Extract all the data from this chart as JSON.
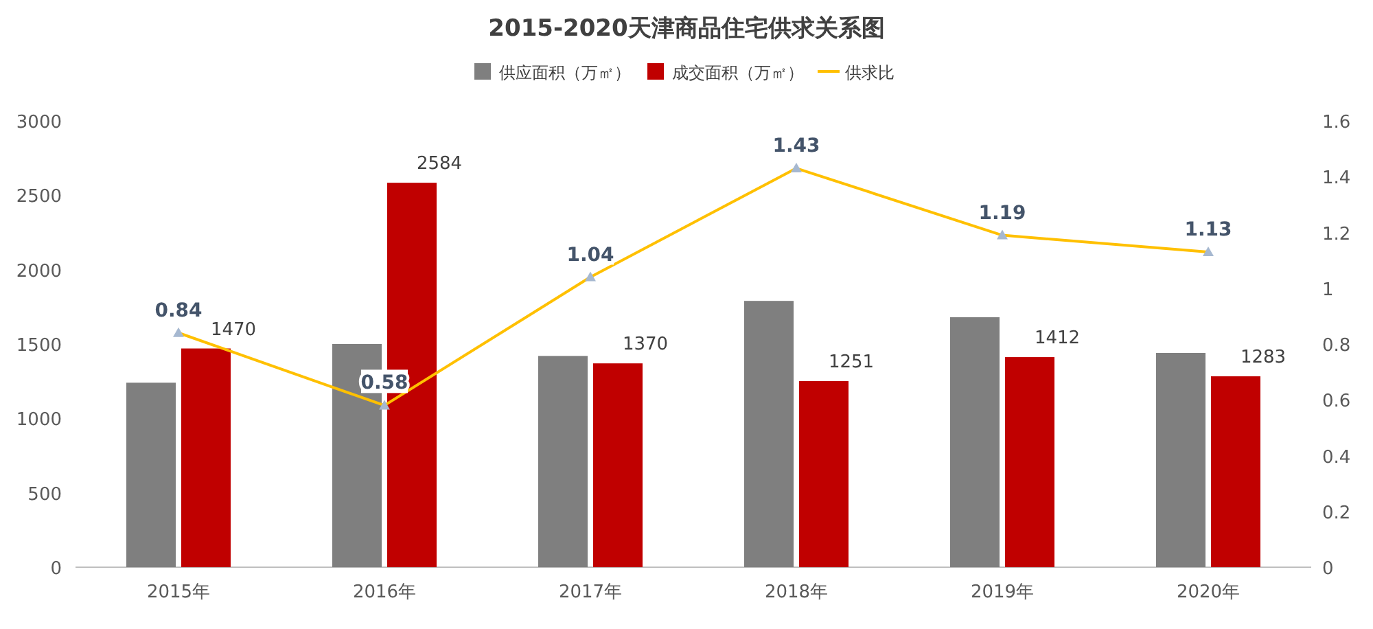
{
  "chart_data": {
    "type": "bar",
    "title": "2015-2020天津商品住宅供求关系图",
    "categories": [
      "2015年",
      "2016年",
      "2017年",
      "2018年",
      "2019年",
      "2020年"
    ],
    "series": [
      {
        "name": "供应面积（万㎡）",
        "color": "#7f7f7f",
        "values": [
          1240,
          1500,
          1420,
          1790,
          1680,
          1440
        ]
      },
      {
        "name": "成交面积（万㎡）",
        "color": "#c00000",
        "values": [
          1470,
          2584,
          1370,
          1251,
          1412,
          1283
        ],
        "value_labels": [
          "1470",
          "2584",
          "1370",
          "1251",
          "1412",
          "1283"
        ]
      },
      {
        "name": "供求比",
        "type": "line",
        "axis": "y2",
        "color": "#ffc000",
        "marker": "triangle",
        "values": [
          0.84,
          0.58,
          1.04,
          1.43,
          1.19,
          1.13
        ],
        "value_labels": [
          "0.84",
          "0.58",
          "1.04",
          "1.43",
          "1.19",
          "1.13"
        ]
      }
    ],
    "ylim": [
      0,
      3000
    ],
    "yticks": [
      0,
      500,
      1000,
      1500,
      2000,
      2500,
      3000
    ],
    "y2lim": [
      0,
      1.6
    ],
    "y2ticks": [
      0,
      0.2,
      0.4,
      0.6,
      0.8,
      1,
      1.2,
      1.4,
      1.6
    ],
    "legend": "top"
  }
}
